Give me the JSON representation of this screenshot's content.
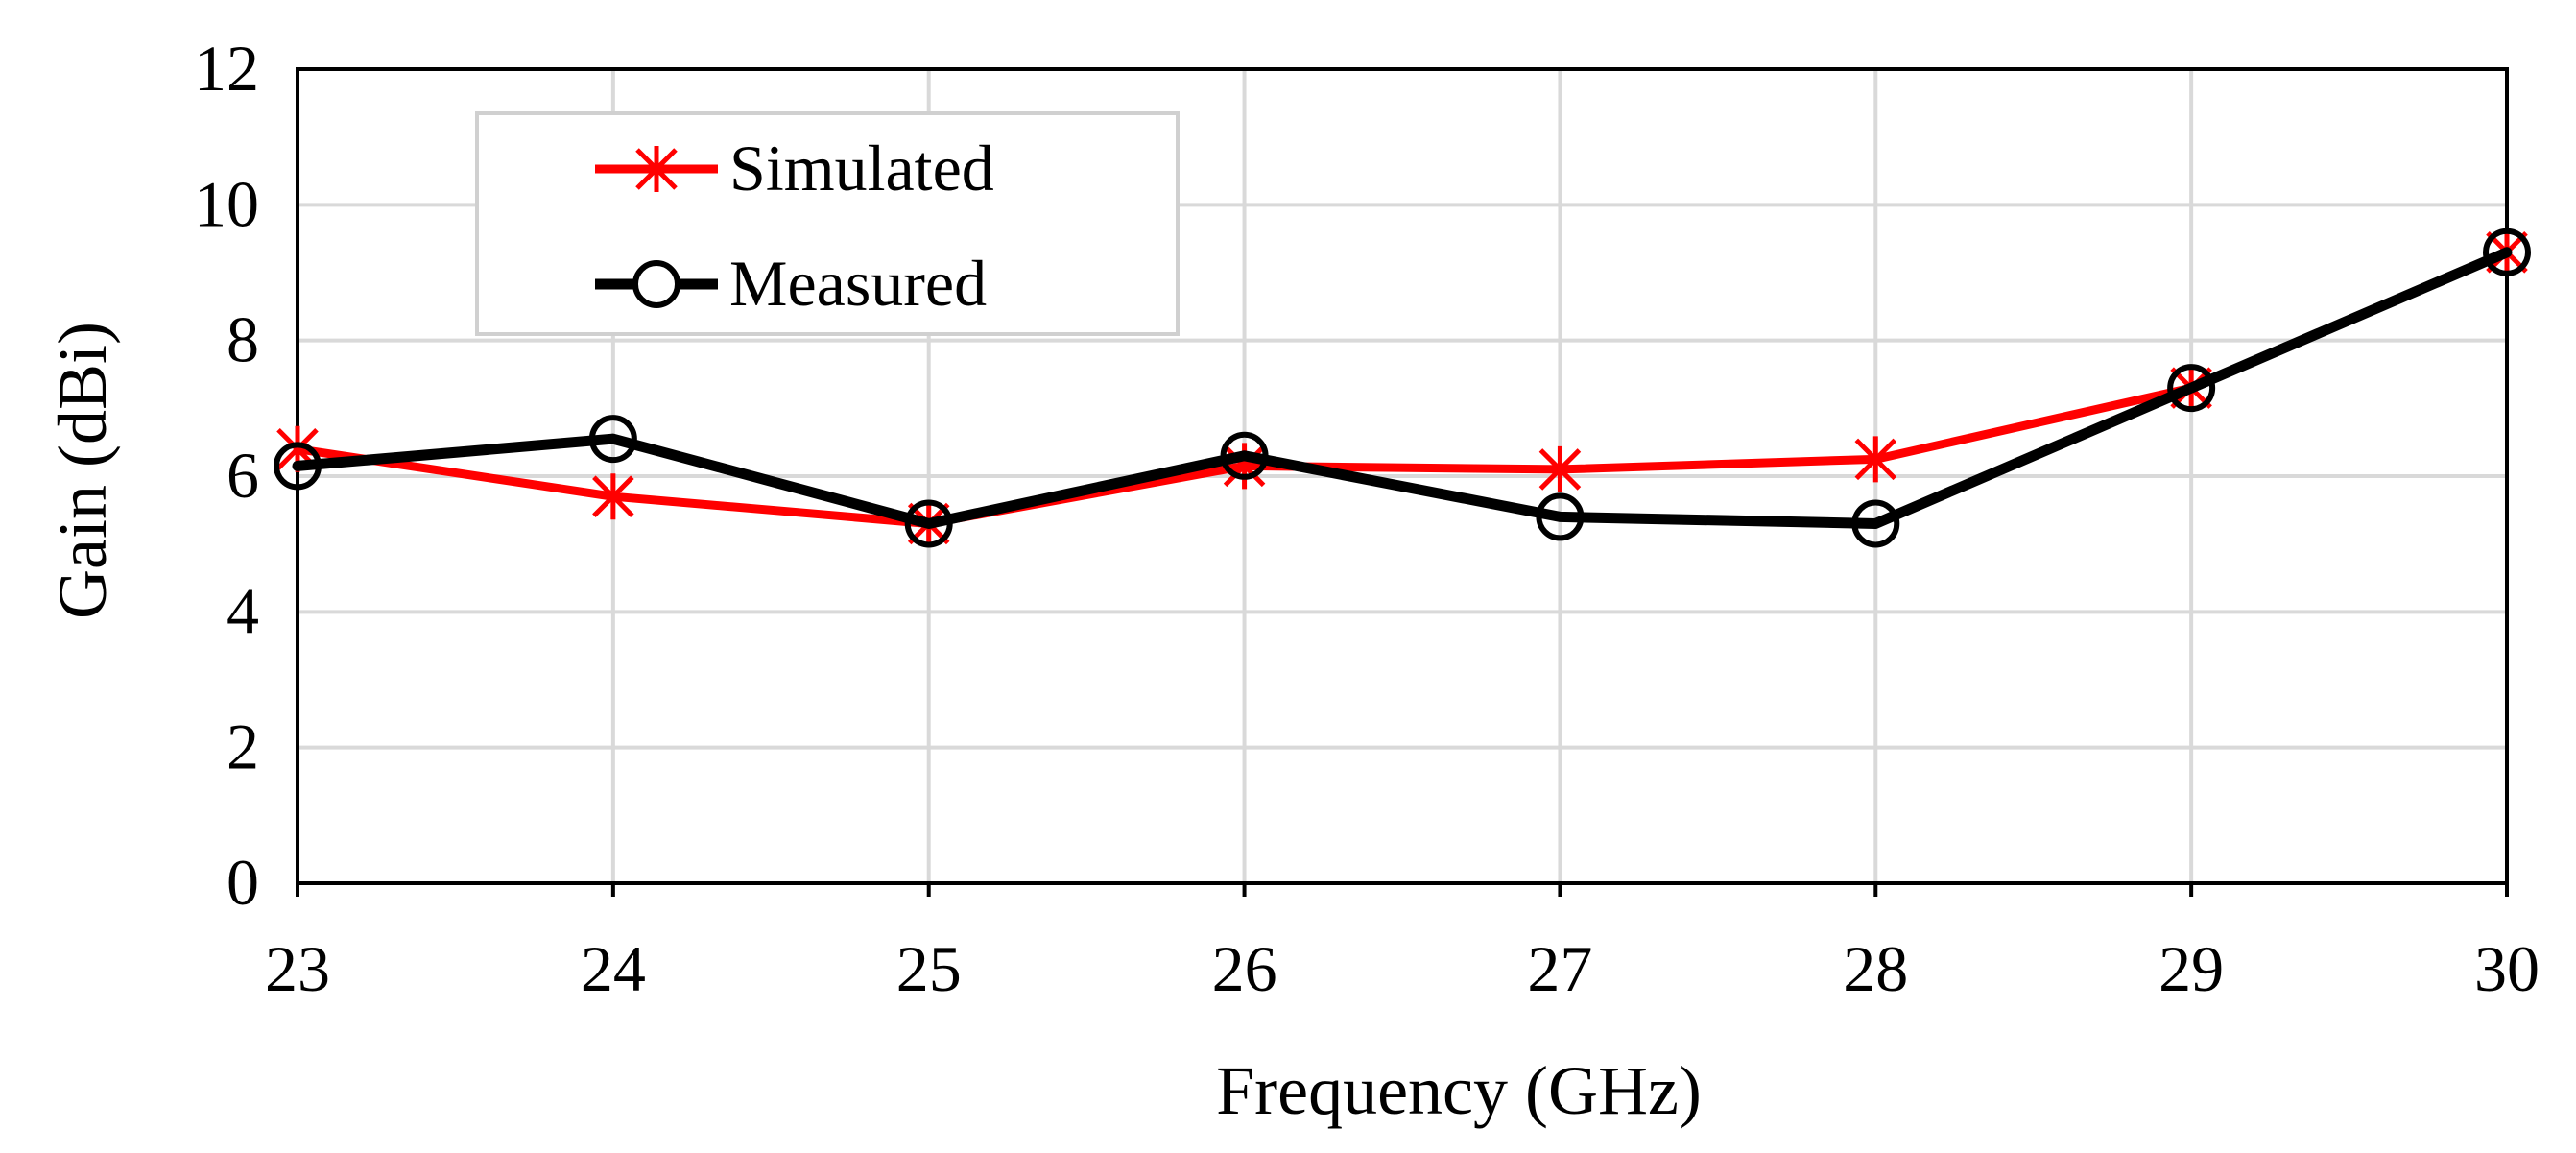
{
  "chart_data": {
    "type": "line",
    "title": "",
    "xlabel": "Frequency (GHz)",
    "ylabel": "Gain (dBi)",
    "x": [
      23,
      24,
      25,
      26,
      27,
      28,
      29,
      30
    ],
    "xlim": [
      23,
      30
    ],
    "ylim": [
      0,
      12
    ],
    "x_ticks": [
      23,
      24,
      25,
      26,
      27,
      28,
      29,
      30
    ],
    "y_ticks": [
      0,
      2,
      4,
      6,
      8,
      10,
      12
    ],
    "grid": true,
    "legend_position": "top-left",
    "series": [
      {
        "name": "Simulated",
        "color": "#ff0000",
        "marker": "asterisk",
        "values": [
          6.4,
          5.7,
          5.3,
          6.15,
          6.1,
          6.25,
          7.3,
          9.3
        ]
      },
      {
        "name": "Measured",
        "color": "#000000",
        "marker": "circle",
        "values": [
          6.15,
          6.55,
          5.3,
          6.3,
          5.4,
          5.3,
          7.3,
          9.3
        ]
      }
    ]
  }
}
